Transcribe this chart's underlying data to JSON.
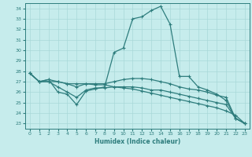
{
  "xlabel": "Humidex (Indice chaleur)",
  "xlim": [
    -0.5,
    23.5
  ],
  "ylim": [
    22.5,
    34.5
  ],
  "yticks": [
    23,
    24,
    25,
    26,
    27,
    28,
    29,
    30,
    31,
    32,
    33,
    34
  ],
  "xticks": [
    0,
    1,
    2,
    3,
    4,
    5,
    6,
    7,
    8,
    9,
    10,
    11,
    12,
    13,
    14,
    15,
    16,
    17,
    18,
    19,
    20,
    21,
    22,
    23
  ],
  "background_color": "#c6ecec",
  "grid_color": "#a8d8d8",
  "line_color": "#2e7d7d",
  "lines": [
    {
      "x": [
        0,
        1,
        2,
        3,
        4,
        5,
        6,
        7,
        8,
        9,
        10,
        11,
        12,
        13,
        14,
        15,
        16,
        17,
        18,
        19,
        20,
        21,
        22,
        23
      ],
      "y": [
        27.8,
        27.0,
        27.2,
        26.0,
        25.8,
        24.8,
        26.1,
        26.3,
        26.5,
        29.8,
        30.2,
        33.0,
        33.2,
        33.8,
        34.2,
        32.5,
        27.5,
        27.5,
        26.5,
        26.2,
        25.8,
        25.2,
        23.5,
        23.0
      ]
    },
    {
      "x": [
        0,
        1,
        2,
        3,
        4,
        5,
        6,
        7,
        8,
        9,
        10,
        11,
        12,
        13,
        14,
        15,
        16,
        17,
        18,
        19,
        20,
        21,
        22,
        23
      ],
      "y": [
        27.8,
        27.0,
        27.2,
        27.0,
        26.8,
        26.5,
        26.8,
        26.8,
        26.8,
        27.0,
        27.2,
        27.3,
        27.3,
        27.2,
        27.0,
        26.8,
        26.5,
        26.3,
        26.2,
        26.0,
        25.7,
        25.5,
        23.5,
        23.0
      ]
    },
    {
      "x": [
        0,
        1,
        2,
        3,
        4,
        5,
        6,
        7,
        8,
        9,
        10,
        11,
        12,
        13,
        14,
        15,
        16,
        17,
        18,
        19,
        20,
        21,
        22,
        23
      ],
      "y": [
        27.8,
        27.0,
        27.0,
        26.5,
        26.0,
        25.5,
        26.2,
        26.4,
        26.4,
        26.5,
        26.5,
        26.5,
        26.4,
        26.2,
        26.2,
        26.0,
        25.8,
        25.6,
        25.4,
        25.2,
        25.0,
        24.8,
        23.5,
        23.0
      ]
    },
    {
      "x": [
        0,
        1,
        2,
        3,
        4,
        5,
        6,
        7,
        8,
        9,
        10,
        11,
        12,
        13,
        14,
        15,
        16,
        17,
        18,
        19,
        20,
        21,
        22,
        23
      ],
      "y": [
        27.8,
        27.0,
        27.0,
        27.0,
        26.8,
        26.8,
        26.8,
        26.7,
        26.7,
        26.5,
        26.4,
        26.3,
        26.1,
        25.9,
        25.7,
        25.5,
        25.3,
        25.1,
        24.9,
        24.7,
        24.5,
        24.2,
        23.8,
        23.0
      ]
    }
  ]
}
